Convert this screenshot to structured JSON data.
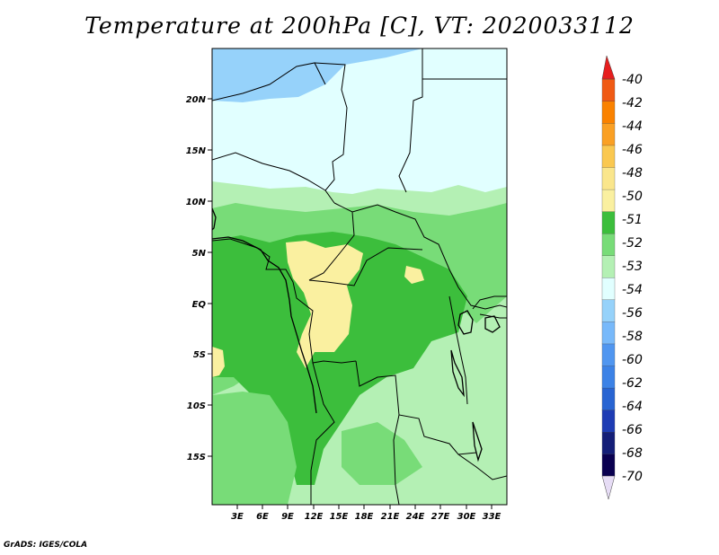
{
  "title": "Temperature at 200hPa [C], VT: 2020033112",
  "footer": "GrADS: IGES/COLA",
  "map": {
    "lat_labels": [
      "20N",
      "15N",
      "10N",
      "5N",
      "EQ",
      "5S",
      "10S",
      "15S"
    ],
    "lon_labels": [
      "3E",
      "6E",
      "9E",
      "12E",
      "15E",
      "18E",
      "21E",
      "24E",
      "27E",
      "30E",
      "33E"
    ],
    "region_colors": {
      "minus_56_to_54": "#96d2fa",
      "minus_54_to_53": "#e1ffff",
      "minus_53_to_52": "#b4f0b4",
      "minus_52_to_51": "#78dc78",
      "minus_51_to_50": "#3cbe3c",
      "minus_50_to_48": "#faf0a0"
    }
  },
  "colorbar": {
    "labels": [
      "-40",
      "-42",
      "-44",
      "-46",
      "-48",
      "-50",
      "-51",
      "-52",
      "-53",
      "-54",
      "-56",
      "-58",
      "-60",
      "-62",
      "-64",
      "-66",
      "-68",
      "-70"
    ],
    "colors": [
      "#e61e1e",
      "#f05a14",
      "#fa8200",
      "#faa024",
      "#fac850",
      "#fae68c",
      "#faf0a0",
      "#3cbe3c",
      "#78dc78",
      "#b4f0b4",
      "#e1ffff",
      "#96d2fa",
      "#78b9fa",
      "#5096f0",
      "#3c82e6",
      "#2864d2",
      "#1e3cb4",
      "#141e78",
      "#0a0050",
      "#e6dcf5"
    ]
  }
}
